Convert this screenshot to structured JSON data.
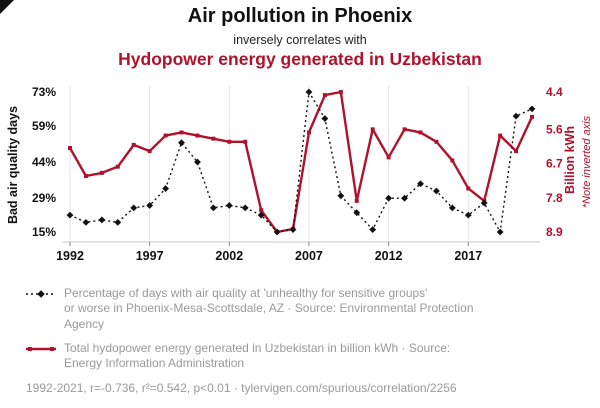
{
  "header": {
    "title": "Air pollution in Phoenix",
    "subtitle": "inversely correlates with",
    "title2": "Hydopower energy generated in Uzbekistan"
  },
  "chart_data": {
    "type": "line",
    "x": [
      1992,
      1993,
      1994,
      1995,
      1996,
      1997,
      1998,
      1999,
      2000,
      2001,
      2002,
      2003,
      2004,
      2005,
      2006,
      2007,
      2008,
      2009,
      2010,
      2011,
      2012,
      2013,
      2014,
      2015,
      2016,
      2017,
      2018,
      2019,
      2020,
      2021
    ],
    "x_ticks": [
      1992,
      1997,
      2002,
      2007,
      2012,
      2017
    ],
    "left_axis": {
      "label": "Bad air quality days",
      "ticks": [
        "73%",
        "59%",
        "44%",
        "29%",
        "15%"
      ],
      "tick_values": [
        73,
        59,
        44,
        29,
        15
      ],
      "range": [
        15,
        73
      ]
    },
    "right_axis": {
      "label": "Billion kWh",
      "note": "*Note inverted axis",
      "ticks": [
        "4.4",
        "5.6",
        "6.7",
        "7.8",
        "8.9"
      ],
      "tick_values": [
        4.4,
        5.6,
        6.7,
        7.8,
        8.9
      ],
      "range": [
        4.4,
        8.9
      ],
      "inverted": true
    },
    "series": [
      {
        "name": "Percentage of days with bad air quality in Phoenix-Mesa-Scottsdale, AZ",
        "axis": "left",
        "color": "#111111",
        "style": "dotted-diamond",
        "values": [
          22,
          19,
          20,
          19,
          25,
          26,
          33,
          52,
          44,
          25,
          26,
          25,
          22,
          15,
          16,
          73,
          62,
          30,
          23,
          16,
          29,
          29,
          35,
          32,
          25,
          22,
          27,
          15,
          63,
          66
        ]
      },
      {
        "name": "Total hydopower energy generated in Uzbekistan (billion kWh)",
        "axis": "right",
        "color": "#b0122c",
        "style": "solid-square",
        "values": [
          6.2,
          7.1,
          7.0,
          6.8,
          6.1,
          6.3,
          5.8,
          5.7,
          5.8,
          5.9,
          6.0,
          6.0,
          8.2,
          8.9,
          8.8,
          5.7,
          4.5,
          4.4,
          7.9,
          5.6,
          6.5,
          5.6,
          5.7,
          6.0,
          6.6,
          7.5,
          7.9,
          5.8,
          6.3,
          5.2
        ]
      }
    ],
    "grid": "vertical-only",
    "legend_position": "bottom"
  },
  "legend": [
    {
      "marker": "black-dotted-diamond",
      "lines": [
        "Percentage of days with air quality at 'unhealthy for sensitive groups'",
        "or worse in Phoenix-Mesa-Scottsdale, AZ · Source: Environmental Protection",
        "Agency"
      ]
    },
    {
      "marker": "red-line-square",
      "lines": [
        "Total hydopower energy generated in Uzbekistan in billion kWh · Source:",
        "Energy Information Administration"
      ]
    }
  ],
  "footer": {
    "text": "1992-2021, r=-0.736, r²=0.542, p<0.01 · tylervigen.com/spurious/correlation/2256"
  },
  "colors": {
    "accent_red": "#b0122c",
    "black": "#111111",
    "gray_text": "#9a9a9a",
    "grid": "#e4e4e4"
  }
}
